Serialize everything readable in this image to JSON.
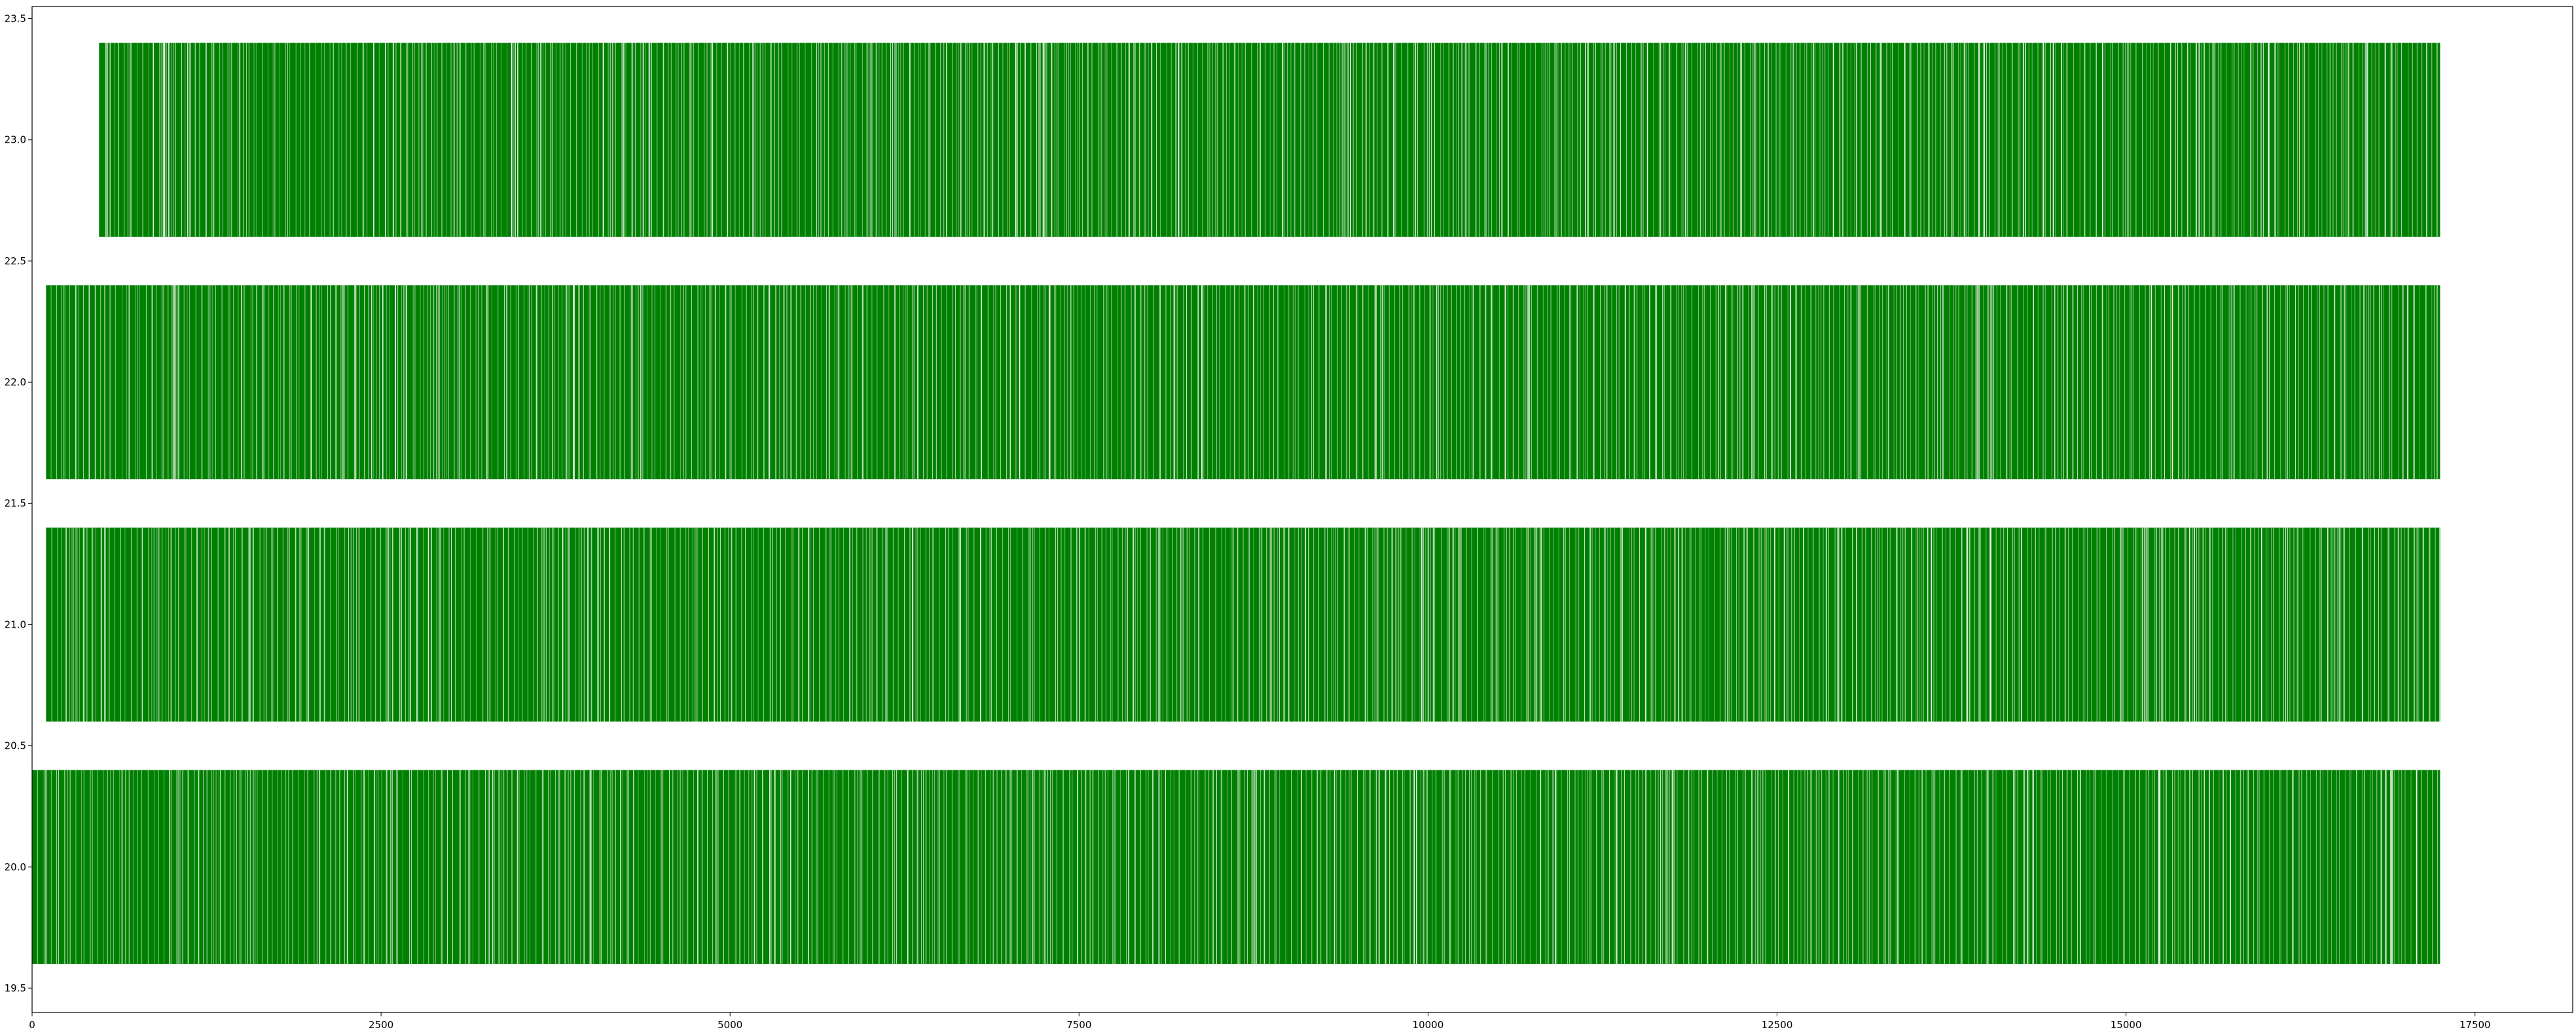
{
  "chart_data": {
    "type": "bar",
    "orientation": "horizontal-event-bands",
    "title": "",
    "xlabel": "",
    "ylabel": "",
    "xlim": [
      0,
      18200
    ],
    "ylim": [
      19.4,
      23.55
    ],
    "grid": false,
    "legend": "none",
    "x_ticks": [
      0,
      2500,
      5000,
      7500,
      10000,
      12500,
      15000,
      17500
    ],
    "x_tick_labels": [
      "0",
      "2500",
      "5000",
      "7500",
      "10000",
      "12500",
      "15000",
      "17500"
    ],
    "y_ticks": [
      19.5,
      20.0,
      20.5,
      21.0,
      21.5,
      22.0,
      22.5,
      23.0,
      23.5
    ],
    "y_tick_labels": [
      "19.5",
      "20.0",
      "20.5",
      "21.0",
      "21.5",
      "22.0",
      "22.5",
      "23.0",
      "23.5"
    ],
    "series": [
      {
        "y_center": 20,
        "height": 0.8,
        "x_start": 0,
        "x_end": 17250,
        "color": "#008000"
      },
      {
        "y_center": 21,
        "height": 0.8,
        "x_start": 100,
        "x_end": 17250,
        "color": "#008000"
      },
      {
        "y_center": 22,
        "height": 0.8,
        "x_start": 100,
        "x_end": 17250,
        "color": "#008000"
      },
      {
        "y_center": 23,
        "height": 0.8,
        "x_start": 480,
        "x_end": 17250,
        "color": "#008000"
      }
    ],
    "gap_color": "#ffffff"
  }
}
